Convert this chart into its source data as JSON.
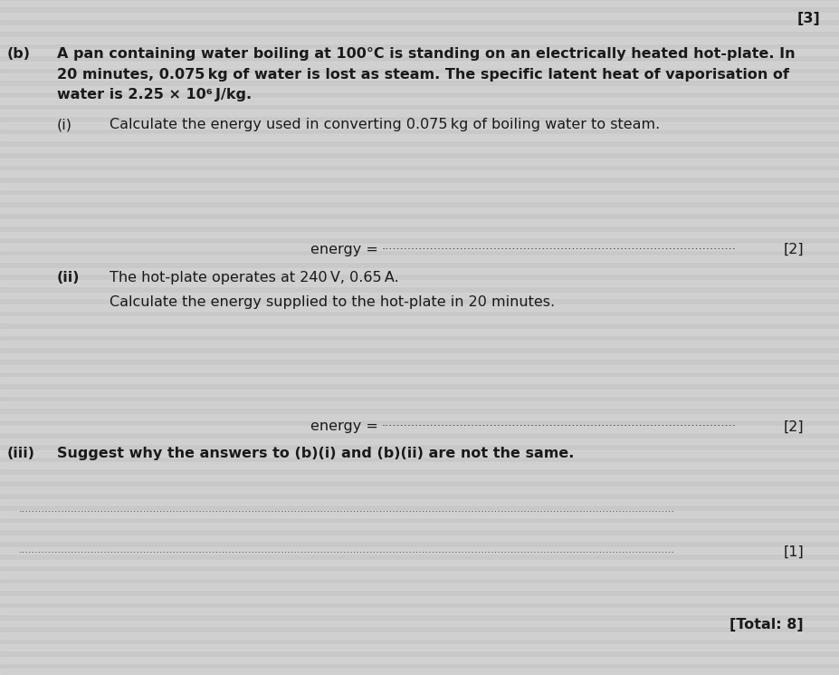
{
  "bg_color": "#c8c8c8",
  "stripe_color": "#d8d8d8",
  "text_color": "#1a1a1a",
  "fig_width": 9.27,
  "fig_height": 7.45,
  "mark_top_right": "[3]",
  "mark_i": "[2]",
  "mark_ii": "[2]",
  "mark_iii": "[1]",
  "total_mark": "[Total: 8]",
  "b_label": "(b)",
  "b_line1": "A pan containing water boiling at 100°C is standing on an electrically heated hot-plate. In",
  "b_line2": "20 minutes, 0.075 kg of water is lost as steam. The specific latent heat of vaporisation of",
  "b_line3": "water is 2.25 × 10⁶ J/kg.",
  "i_label": "(i)",
  "i_text": "Calculate the energy used in converting 0.075 kg of boiling water to steam.",
  "energy_label": "energy =",
  "ii_label": "(ii)",
  "ii_text1": "The hot-plate operates at 240 V, 0.65 A.",
  "ii_text2": "Calculate the energy supplied to the hot-plate in 20 minutes.",
  "iii_label": "(iii)",
  "iii_text": "Suggest why the answers to (b)(i) and (b)(ii) are not the same."
}
